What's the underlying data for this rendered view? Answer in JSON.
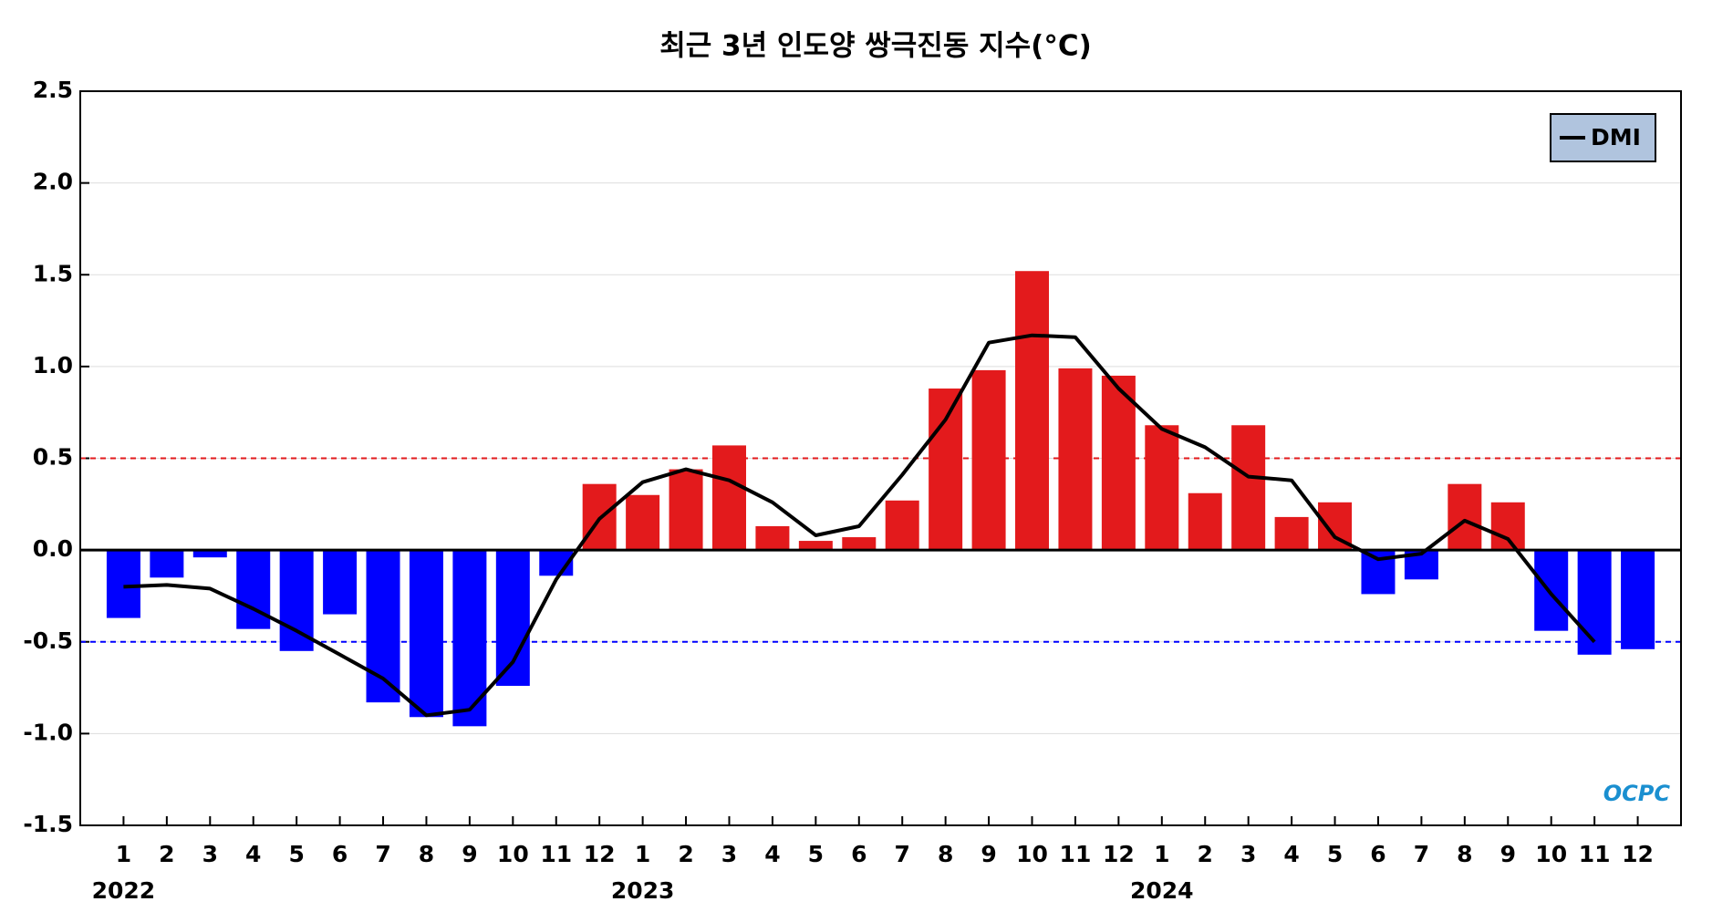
{
  "chart_data": {
    "type": "combo",
    "title": "최근 3년 인도양 쌍극진동 지수(°C)",
    "categories": [
      "1",
      "2",
      "3",
      "4",
      "5",
      "6",
      "7",
      "8",
      "9",
      "10",
      "11",
      "12",
      "1",
      "2",
      "3",
      "4",
      "5",
      "6",
      "7",
      "8",
      "9",
      "10",
      "11",
      "12",
      "1",
      "2",
      "3",
      "4",
      "5",
      "6",
      "7",
      "8",
      "9",
      "10",
      "11",
      "12"
    ],
    "year_labels": [
      "2022",
      "2023",
      "2024"
    ],
    "bars": {
      "positive_color": "#e31a1c",
      "negative_color": "#0000ff",
      "values": [
        -0.37,
        -0.15,
        -0.04,
        -0.43,
        -0.55,
        -0.35,
        -0.83,
        -0.91,
        -0.96,
        -0.74,
        -0.14,
        0.36,
        0.3,
        0.44,
        0.57,
        0.13,
        0.05,
        0.07,
        0.27,
        0.88,
        0.98,
        1.52,
        0.99,
        0.95,
        0.68,
        0.31,
        0.68,
        0.18,
        0.26,
        -0.24,
        -0.16,
        0.36,
        0.26,
        -0.44,
        -0.57,
        -0.54
      ]
    },
    "series": [
      {
        "name": "DMI",
        "color": "#000000",
        "values": [
          -0.2,
          -0.19,
          -0.21,
          -0.32,
          -0.44,
          -0.57,
          -0.7,
          -0.9,
          -0.87,
          -0.61,
          -0.16,
          0.17,
          0.37,
          0.44,
          0.38,
          0.26,
          0.08,
          0.13,
          0.41,
          0.71,
          1.13,
          1.17,
          1.16,
          0.88,
          0.66,
          0.56,
          0.4,
          0.38,
          0.07,
          -0.05,
          -0.02,
          0.16,
          0.06,
          -0.24,
          -0.5,
          null
        ]
      }
    ],
    "reference_lines": [
      {
        "value": 0.5,
        "color": "#e31a1c"
      },
      {
        "value": -0.5,
        "color": "#0000ff"
      }
    ],
    "ylim": [
      -1.5,
      2.5
    ],
    "yticks": [
      -1.5,
      {
        "value": -1,
        "label": "-1.0"
      },
      -0.5,
      {
        "value": 0,
        "label": "0.0"
      },
      0.5,
      {
        "value": 1,
        "label": "1.0"
      },
      1.5,
      {
        "value": 2,
        "label": "2.0"
      },
      2.5
    ],
    "grid": true,
    "legend": "upper right",
    "watermark": "OCPC"
  }
}
